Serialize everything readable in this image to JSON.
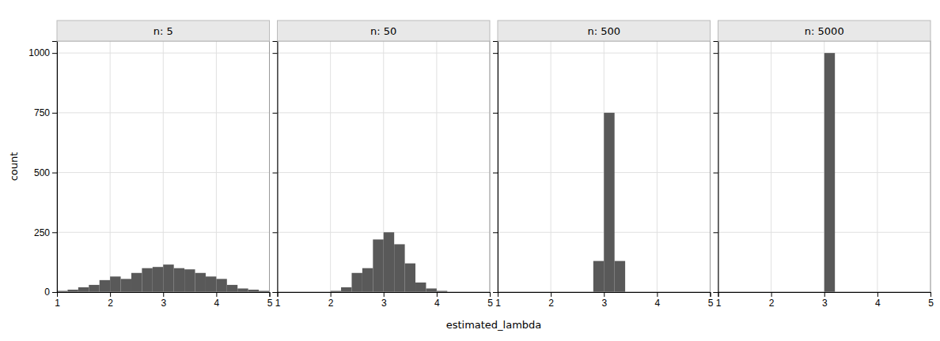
{
  "chart_data": [
    {
      "type": "histogram",
      "title": "n: 5",
      "ylabel": "count",
      "xlabel": "estimated_lambda",
      "bins": [
        1.0,
        1.2,
        1.4,
        1.6,
        1.8,
        2.0,
        2.2,
        2.4,
        2.6,
        2.8,
        3.0,
        3.2,
        3.4,
        3.6,
        3.8,
        4.0,
        4.2,
        4.4,
        4.6,
        4.8,
        5.0
      ],
      "values": [
        5,
        10,
        20,
        30,
        50,
        65,
        55,
        80,
        100,
        105,
        115,
        100,
        95,
        80,
        65,
        55,
        30,
        15,
        10,
        5
      ],
      "color": "#595959",
      "xlim": [
        1,
        5
      ],
      "ylim": [
        0,
        1050
      ],
      "xticks": [
        1,
        2,
        3,
        4,
        5
      ],
      "yticks": [
        0,
        250,
        500,
        750,
        1000
      ],
      "grid": true
    },
    {
      "type": "histogram",
      "title": "n: 50",
      "bins": [
        1.0,
        1.2,
        1.4,
        1.6,
        1.8,
        2.0,
        2.2,
        2.4,
        2.6,
        2.8,
        3.0,
        3.2,
        3.4,
        3.6,
        3.8,
        4.0,
        4.2,
        4.4,
        4.6,
        4.8,
        5.0
      ],
      "values": [
        0,
        0,
        0,
        0,
        0,
        5,
        20,
        80,
        100,
        220,
        250,
        200,
        120,
        40,
        15,
        5,
        0,
        0,
        0,
        0
      ],
      "color": "#595959",
      "xlim": [
        1,
        5
      ],
      "ylim": [
        0,
        1050
      ],
      "xticks": [
        1,
        2,
        3,
        4,
        5
      ],
      "yticks": [
        0,
        250,
        500,
        750,
        1000
      ],
      "grid": true,
      "tick_labels": "x"
    },
    {
      "type": "histogram",
      "title": "n: 500",
      "bins": [
        1.0,
        1.2,
        1.4,
        1.6,
        1.8,
        2.0,
        2.2,
        2.4,
        2.6,
        2.8,
        3.0,
        3.2,
        3.4,
        3.6,
        3.8,
        4.0,
        4.2,
        4.4,
        4.6,
        4.8,
        5.0
      ],
      "values": [
        0,
        0,
        0,
        0,
        0,
        0,
        0,
        0,
        0,
        130,
        750,
        130,
        0,
        0,
        0,
        0,
        0,
        0,
        0,
        0
      ],
      "color": "#595959",
      "xlim": [
        1,
        5
      ],
      "ylim": [
        0,
        1050
      ],
      "xticks": [
        1,
        2,
        3,
        4,
        5
      ],
      "yticks": [
        0,
        250,
        500,
        750,
        1000
      ],
      "grid": true,
      "tick_labels": "x"
    },
    {
      "type": "histogram",
      "title": "n: 5000",
      "bins": [
        1.0,
        1.2,
        1.4,
        1.6,
        1.8,
        2.0,
        2.2,
        2.4,
        2.6,
        2.8,
        3.0,
        3.2,
        3.4,
        3.6,
        3.8,
        4.0,
        4.2,
        4.4,
        4.6,
        4.8,
        5.0
      ],
      "values": [
        0,
        0,
        0,
        0,
        0,
        0,
        0,
        0,
        0,
        0,
        1000,
        0,
        0,
        0,
        0,
        0,
        0,
        0,
        0,
        0
      ],
      "color": "#595959",
      "xlim": [
        1,
        5
      ],
      "ylim": [
        0,
        1050
      ],
      "xticks": [
        1,
        2,
        3,
        4,
        5
      ],
      "yticks": [
        0,
        250,
        500,
        750,
        1000
      ],
      "grid": true,
      "tick_labels": "x"
    }
  ]
}
